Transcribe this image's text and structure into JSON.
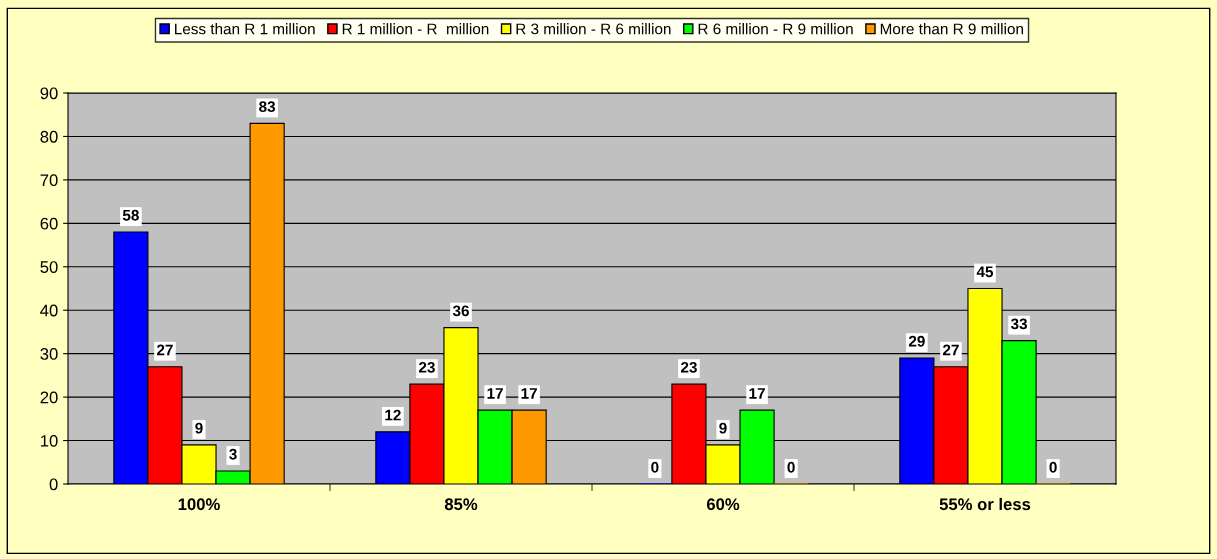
{
  "chart_data": {
    "type": "bar",
    "categories": [
      "100%",
      "85%",
      "60%",
      "55% or less"
    ],
    "series": [
      {
        "name": "Less than R 1 million",
        "color": "#0000ff",
        "values": [
          58,
          12,
          0,
          29
        ]
      },
      {
        "name": "R 1 million - R  million",
        "color": "#ff0000",
        "values": [
          27,
          23,
          23,
          27
        ]
      },
      {
        "name": "R 3 million - R 6 million",
        "color": "#ffff00",
        "values": [
          9,
          36,
          9,
          45
        ]
      },
      {
        "name": "R 6 million - R 9 million",
        "color": "#00ff00",
        "values": [
          3,
          17,
          17,
          33
        ]
      },
      {
        "name": "More than R 9 million",
        "color": "#ff9900",
        "values": [
          83,
          17,
          0,
          0
        ]
      }
    ],
    "ylim": [
      0,
      90
    ],
    "yticks": [
      0,
      10,
      20,
      30,
      40,
      50,
      60,
      70,
      80,
      90
    ],
    "grid": "y",
    "legend": "top",
    "data_labels": true
  }
}
